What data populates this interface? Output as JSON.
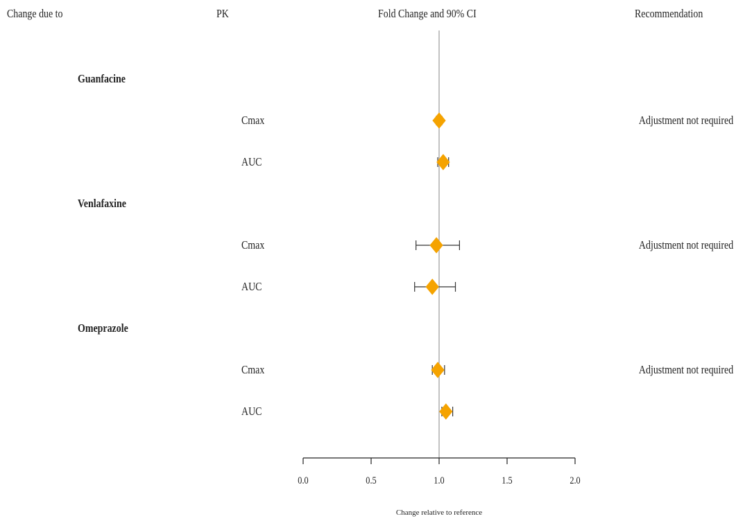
{
  "headers": {
    "change_due_to": "Change due to",
    "pk": "PK",
    "fold_change": "Fold Change and 90% CI",
    "recommendation": "Recommendation"
  },
  "chart_data": {
    "type": "forest",
    "xlabel": "Change relative to reference",
    "xlim": [
      0,
      2
    ],
    "xticks": [
      0.0,
      0.5,
      1.0,
      1.5,
      2.0
    ],
    "xtick_labels": [
      "0.0",
      "0.5",
      "1.0",
      "1.5",
      "2.0"
    ],
    "reference_line": 1.0,
    "marker_color": "#f5a300",
    "groups": [
      {
        "name": "Guanfacine",
        "recommendation": "Adjustment not required",
        "rows": [
          {
            "pk": "Cmax",
            "estimate": 1.0,
            "lower": 0.98,
            "upper": 1.02
          },
          {
            "pk": "AUC",
            "estimate": 1.03,
            "lower": 0.99,
            "upper": 1.07
          }
        ]
      },
      {
        "name": "Venlafaxine",
        "recommendation": "Adjustment not required",
        "rows": [
          {
            "pk": "Cmax",
            "estimate": 0.98,
            "lower": 0.83,
            "upper": 1.15
          },
          {
            "pk": "AUC",
            "estimate": 0.95,
            "lower": 0.82,
            "upper": 1.12
          }
        ]
      },
      {
        "name": "Omeprazole",
        "recommendation": "Adjustment not required",
        "rows": [
          {
            "pk": "Cmax",
            "estimate": 0.99,
            "lower": 0.95,
            "upper": 1.04
          },
          {
            "pk": "AUC",
            "estimate": 1.05,
            "lower": 1.02,
            "upper": 1.1
          }
        ]
      }
    ]
  }
}
